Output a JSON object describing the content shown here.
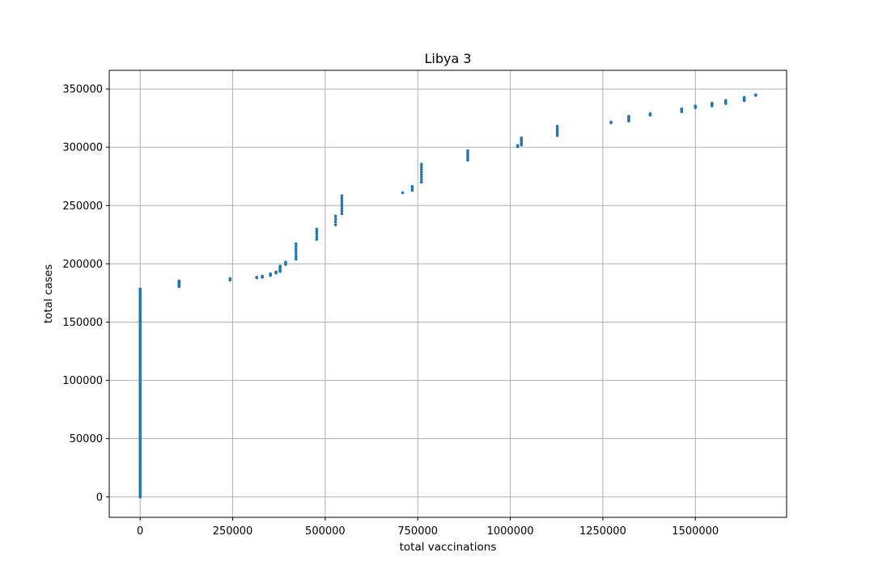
{
  "chart_data": {
    "type": "scatter",
    "title": "Libya 3",
    "xlabel": "total vaccinations",
    "ylabel": "total cases",
    "xlim": [
      -83500,
      1746500
    ],
    "ylim": [
      -17500,
      366000
    ],
    "grid": true,
    "marker_color": "#1f77b4",
    "x_ticks": [
      0,
      250000,
      500000,
      750000,
      1000000,
      1250000,
      1500000
    ],
    "x_tick_labels": [
      "0",
      "250000",
      "500000",
      "750000",
      "1000000",
      "1250000",
      "1500000"
    ],
    "y_ticks": [
      0,
      50000,
      100000,
      150000,
      200000,
      250000,
      300000,
      350000
    ],
    "y_tick_labels": [
      "0",
      "50000",
      "100000",
      "150000",
      "200000",
      "250000",
      "300000",
      "350000"
    ],
    "clusters": [
      {
        "x": 0,
        "y_from": 0,
        "y_to": 179000,
        "step": 1500
      },
      {
        "x": 105000,
        "y_from": 180500,
        "y_to": 185500,
        "step": 800
      },
      {
        "x": 243000,
        "y_from": 186000,
        "y_to": 188000,
        "step": 700
      },
      {
        "x": 315000,
        "y_from": 188000,
        "y_to": 188500,
        "step": 500
      },
      {
        "x": 330000,
        "y_from": 188500,
        "y_to": 189500,
        "step": 500
      },
      {
        "x": 352000,
        "y_from": 190000,
        "y_to": 191500,
        "step": 700
      },
      {
        "x": 367000,
        "y_from": 192000,
        "y_to": 193000,
        "step": 500
      },
      {
        "x": 378000,
        "y_from": 193500,
        "y_to": 198000,
        "step": 900
      },
      {
        "x": 393000,
        "y_from": 199500,
        "y_to": 201500,
        "step": 1000
      },
      {
        "x": 421000,
        "y_from": 204000,
        "y_to": 217500,
        "step": 2200
      },
      {
        "x": 477000,
        "y_from": 221000,
        "y_to": 230000,
        "step": 2200
      },
      {
        "x": 528000,
        "y_from": 233500,
        "y_to": 241000,
        "step": 2500
      },
      {
        "x": 545000,
        "y_from": 243000,
        "y_to": 258500,
        "step": 2200
      },
      {
        "x": 709000,
        "y_from": 261000,
        "y_to": 261000,
        "step": 1000
      },
      {
        "x": 735000,
        "y_from": 263000,
        "y_to": 268000,
        "step": 1700
      },
      {
        "x": 760000,
        "y_from": 270000,
        "y_to": 287500,
        "step": 2200
      },
      {
        "x": 885000,
        "y_from": 289000,
        "y_to": 298500,
        "step": 1600
      },
      {
        "x": 1020000,
        "y_from": 300500,
        "y_to": 301500,
        "step": 1000
      },
      {
        "x": 1030000,
        "y_from": 302000,
        "y_to": 309000,
        "step": 1500
      },
      {
        "x": 1127000,
        "y_from": 310000,
        "y_to": 319500,
        "step": 1600
      },
      {
        "x": 1272000,
        "y_from": 321000,
        "y_to": 321500,
        "step": 500
      },
      {
        "x": 1320000,
        "y_from": 322500,
        "y_to": 326500,
        "step": 1000
      },
      {
        "x": 1378000,
        "y_from": 327500,
        "y_to": 329500,
        "step": 700
      },
      {
        "x": 1463000,
        "y_from": 330500,
        "y_to": 333000,
        "step": 800
      },
      {
        "x": 1500000,
        "y_from": 334000,
        "y_to": 336000,
        "step": 700
      },
      {
        "x": 1545000,
        "y_from": 335500,
        "y_to": 338000,
        "step": 800
      },
      {
        "x": 1582000,
        "y_from": 337500,
        "y_to": 341000,
        "step": 900
      },
      {
        "x": 1632000,
        "y_from": 340000,
        "y_to": 343500,
        "step": 900
      },
      {
        "x": 1663000,
        "y_from": 344500,
        "y_to": 345000,
        "step": 500
      }
    ]
  }
}
